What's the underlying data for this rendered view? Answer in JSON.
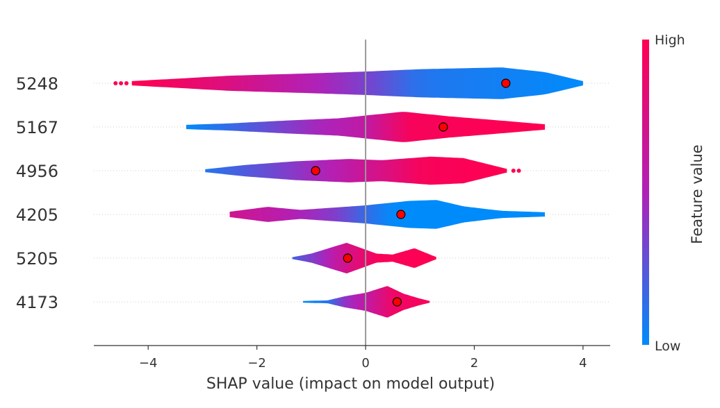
{
  "chart_data": {
    "type": "violin",
    "xlabel": "SHAP value (impact on model output)",
    "xlim": [
      -5,
      4.5
    ],
    "xticks": [
      {
        "value": -4,
        "label": "−4"
      },
      {
        "value": -2,
        "label": "−2"
      },
      {
        "value": 0,
        "label": "0"
      },
      {
        "value": 2,
        "label": "2"
      },
      {
        "value": 4,
        "label": "4"
      }
    ],
    "colorbar": {
      "title": "Feature value",
      "high_label": "High",
      "low_label": "Low",
      "high_color": "#ff0051",
      "mid_color": "#b021b8",
      "low_color": "#008bfb"
    },
    "zero_line_color": "#999999",
    "marker_color": "#ff0000",
    "features": [
      {
        "name": "5248",
        "marker": 2.58,
        "range": [
          -4.3,
          4.0
        ],
        "outliers": [
          -4.6,
          -4.5,
          -4.4
        ],
        "width": [
          [
            -4.3,
            0.12
          ],
          [
            -3.5,
            0.25
          ],
          [
            -2.5,
            0.42
          ],
          [
            -1.0,
            0.55
          ],
          [
            0.0,
            0.65
          ],
          [
            1.0,
            0.78
          ],
          [
            2.5,
            0.88
          ],
          [
            3.3,
            0.62
          ],
          [
            4.0,
            0.12
          ]
        ],
        "color": [
          [
            -4.3,
            1.0
          ],
          [
            -3.0,
            0.85
          ],
          [
            -1.5,
            0.6
          ],
          [
            0.0,
            0.35
          ],
          [
            1.0,
            0.1
          ],
          [
            4.0,
            0.0
          ]
        ]
      },
      {
        "name": "5167",
        "marker": 1.43,
        "range": [
          -3.3,
          3.3
        ],
        "outliers": [],
        "width": [
          [
            -3.3,
            0.12
          ],
          [
            -2.5,
            0.2
          ],
          [
            -1.5,
            0.35
          ],
          [
            -0.5,
            0.48
          ],
          [
            0.7,
            0.85
          ],
          [
            1.5,
            0.6
          ],
          [
            2.5,
            0.35
          ],
          [
            3.3,
            0.15
          ]
        ],
        "color": [
          [
            -3.3,
            0.0
          ],
          [
            -2.5,
            0.15
          ],
          [
            -1.0,
            0.45
          ],
          [
            0.0,
            0.6
          ],
          [
            0.8,
            0.95
          ],
          [
            3.3,
            1.0
          ]
        ]
      },
      {
        "name": "4956",
        "marker": -0.92,
        "range": [
          -2.95,
          2.6
        ],
        "outliers": [
          2.72,
          2.82
        ],
        "width": [
          [
            -2.95,
            0.08
          ],
          [
            -2.2,
            0.32
          ],
          [
            -1.3,
            0.52
          ],
          [
            -0.3,
            0.65
          ],
          [
            0.3,
            0.58
          ],
          [
            1.2,
            0.78
          ],
          [
            1.8,
            0.7
          ],
          [
            2.4,
            0.25
          ],
          [
            2.6,
            0.1
          ]
        ],
        "color": [
          [
            -2.95,
            0.1
          ],
          [
            -1.5,
            0.35
          ],
          [
            -0.5,
            0.55
          ],
          [
            0.5,
            0.8
          ],
          [
            1.0,
            0.95
          ],
          [
            2.6,
            1.0
          ]
        ]
      },
      {
        "name": "4205",
        "marker": 0.65,
        "range": [
          -2.5,
          3.3
        ],
        "outliers": [],
        "width": [
          [
            -2.5,
            0.15
          ],
          [
            -1.8,
            0.42
          ],
          [
            -1.2,
            0.25
          ],
          [
            0.0,
            0.5
          ],
          [
            0.8,
            0.75
          ],
          [
            1.3,
            0.8
          ],
          [
            1.8,
            0.45
          ],
          [
            2.5,
            0.2
          ],
          [
            3.3,
            0.12
          ]
        ],
        "color": [
          [
            -2.5,
            0.7
          ],
          [
            -1.5,
            0.55
          ],
          [
            -0.5,
            0.35
          ],
          [
            0.0,
            0.15
          ],
          [
            0.5,
            0.0
          ],
          [
            3.3,
            0.0
          ]
        ]
      },
      {
        "name": "5205",
        "marker": -0.33,
        "range": [
          -1.35,
          1.3
        ],
        "outliers": [],
        "width": [
          [
            -1.35,
            0.05
          ],
          [
            -1.0,
            0.25
          ],
          [
            -0.35,
            0.85
          ],
          [
            0.2,
            0.25
          ],
          [
            0.5,
            0.2
          ],
          [
            0.9,
            0.55
          ],
          [
            1.1,
            0.3
          ],
          [
            1.3,
            0.06
          ]
        ],
        "color": [
          [
            -1.35,
            0.2
          ],
          [
            -0.8,
            0.45
          ],
          [
            -0.3,
            0.75
          ],
          [
            0.2,
            0.95
          ],
          [
            1.3,
            1.0
          ]
        ]
      },
      {
        "name": "4173",
        "marker": 0.58,
        "range": [
          -1.15,
          1.18
        ],
        "outliers": [],
        "width": [
          [
            -1.15,
            0.05
          ],
          [
            -0.7,
            0.08
          ],
          [
            -0.4,
            0.3
          ],
          [
            0.0,
            0.5
          ],
          [
            0.4,
            0.88
          ],
          [
            0.7,
            0.45
          ],
          [
            1.0,
            0.18
          ],
          [
            1.18,
            0.05
          ]
        ],
        "color": [
          [
            -1.15,
            0.0
          ],
          [
            -0.7,
            0.1
          ],
          [
            -0.4,
            0.4
          ],
          [
            0.1,
            0.65
          ],
          [
            0.5,
            0.9
          ],
          [
            1.18,
            0.95
          ]
        ]
      }
    ]
  }
}
